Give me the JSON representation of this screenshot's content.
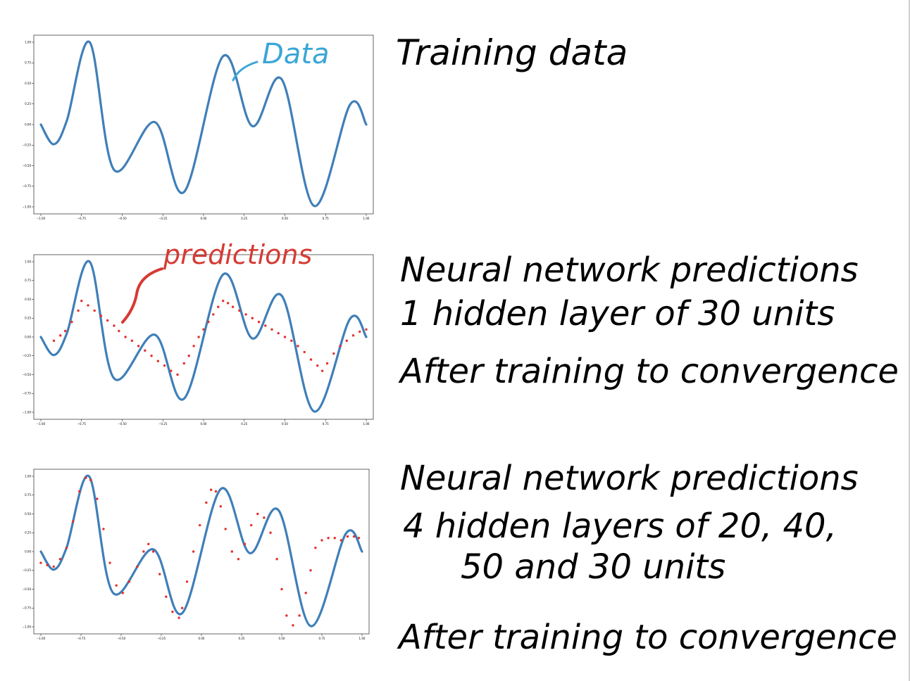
{
  "annotations": {
    "panel1_title": "Training data",
    "panel2_title_line1": "Neural network predictions",
    "panel2_title_line2": "1 hidden layer of 30 units",
    "panel2_title_line3": "After training to convergence",
    "panel3_title_line1": "Neural network predictions",
    "panel3_title_line2": "4 hidden layers of 20, 40,",
    "panel3_title_line3": "50 and 30 units",
    "panel3_title_line4": "After training to convergence",
    "data_callout": "Data",
    "predictions_callout": "predictions"
  },
  "colors": {
    "data_line": "#3f7fb8",
    "data_callout": "#3aa6d6",
    "predictions": "#e4302b",
    "predictions_callout": "#d63a33"
  },
  "chart_data": [
    {
      "type": "line",
      "title": "",
      "xlabel": "",
      "ylabel": "",
      "xlim": [
        -1.0,
        1.0
      ],
      "ylim": [
        -1.0,
        1.0
      ],
      "xticks": [
        -1.0,
        -0.75,
        -0.5,
        -0.25,
        0.0,
        0.25,
        0.5,
        0.75,
        1.0
      ],
      "xtick_labels": [
        "−1.00",
        "−0.75",
        "−0.50",
        "−0.25",
        "0.00",
        "0.25",
        "0.50",
        "0.75",
        "1.00"
      ],
      "yticks": [
        1.0,
        0.75,
        0.5,
        0.25,
        0.0,
        -0.25,
        -0.5,
        -0.75,
        -1.0
      ],
      "ytick_labels": [
        "1.00",
        "0.75",
        "0.50",
        "0.25",
        "0.00",
        "−0.25",
        "−0.50",
        "−0.75",
        "−1.00"
      ],
      "grid": false,
      "series": [
        {
          "name": "Data",
          "kind": "line",
          "x": [
            -1.0,
            -0.92,
            -0.84,
            -0.7,
            -0.55,
            -0.3,
            -0.12,
            0.12,
            0.3,
            0.48,
            0.68,
            0.9,
            1.0
          ],
          "y": [
            0.0,
            -0.24,
            0.05,
            1.0,
            -0.55,
            0.03,
            -0.82,
            0.83,
            -0.02,
            0.55,
            -0.99,
            0.24,
            0.0
          ]
        }
      ]
    },
    {
      "type": "line",
      "title": "",
      "xlabel": "",
      "ylabel": "",
      "xlim": [
        -1.0,
        1.0
      ],
      "ylim": [
        -1.0,
        1.0
      ],
      "xticks": [
        -1.0,
        -0.75,
        -0.5,
        -0.25,
        0.0,
        0.25,
        0.5,
        0.75,
        1.0
      ],
      "xtick_labels": [
        "−1.00",
        "−0.75",
        "−0.50",
        "−0.25",
        "0.00",
        "0.25",
        "0.50",
        "0.75",
        "1.00"
      ],
      "yticks": [
        1.0,
        0.75,
        0.5,
        0.25,
        0.0,
        -0.25,
        -0.5,
        -0.75,
        -1.0
      ],
      "ytick_labels": [
        "1.00",
        "0.75",
        "0.50",
        "0.25",
        "0.00",
        "−0.25",
        "−0.50",
        "−0.75",
        "−1.00"
      ],
      "grid": false,
      "series": [
        {
          "name": "Data",
          "kind": "line",
          "x": [
            -1.0,
            -0.92,
            -0.84,
            -0.7,
            -0.55,
            -0.3,
            -0.12,
            0.12,
            0.3,
            0.48,
            0.68,
            0.9,
            1.0
          ],
          "y": [
            0.0,
            -0.24,
            0.05,
            1.0,
            -0.55,
            0.03,
            -0.82,
            0.83,
            -0.02,
            0.55,
            -0.99,
            0.24,
            0.0
          ]
        },
        {
          "name": "predictions",
          "kind": "scatter",
          "x": [
            -0.92,
            -0.88,
            -0.85,
            -0.81,
            -0.77,
            -0.75,
            -0.71,
            -0.67,
            -0.63,
            -0.59,
            -0.55,
            -0.52,
            -0.48,
            -0.44,
            -0.4,
            -0.36,
            -0.32,
            -0.28,
            -0.24,
            -0.2,
            -0.16,
            -0.12,
            -0.09,
            -0.06,
            -0.03,
            0.0,
            0.03,
            0.06,
            0.09,
            0.12,
            0.15,
            0.18,
            0.22,
            0.26,
            0.3,
            0.34,
            0.38,
            0.42,
            0.46,
            0.5,
            0.54,
            0.58,
            0.62,
            0.66,
            0.7,
            0.73,
            0.76,
            0.8,
            0.84,
            0.88,
            0.92,
            0.96,
            1.0
          ],
          "y": [
            -0.05,
            0.02,
            0.08,
            0.2,
            0.35,
            0.48,
            0.42,
            0.35,
            0.28,
            0.22,
            0.15,
            0.08,
            0.0,
            -0.05,
            -0.12,
            -0.18,
            -0.25,
            -0.32,
            -0.38,
            -0.45,
            -0.5,
            -0.35,
            -0.25,
            -0.12,
            0.0,
            0.1,
            0.2,
            0.3,
            0.4,
            0.48,
            0.45,
            0.4,
            0.35,
            0.3,
            0.25,
            0.2,
            0.15,
            0.1,
            0.05,
            0.0,
            -0.05,
            -0.12,
            -0.2,
            -0.3,
            -0.38,
            -0.45,
            -0.35,
            -0.22,
            -0.12,
            -0.05,
            0.02,
            0.07,
            0.1
          ]
        }
      ]
    },
    {
      "type": "line",
      "title": "",
      "xlabel": "",
      "ylabel": "",
      "xlim": [
        -1.0,
        1.0
      ],
      "ylim": [
        -1.0,
        1.0
      ],
      "xticks": [
        -1.0,
        -0.75,
        -0.5,
        -0.25,
        0.0,
        0.25,
        0.5,
        0.75,
        1.0
      ],
      "xtick_labels": [
        "−1.00",
        "−0.75",
        "−0.50",
        "−0.25",
        "0.00",
        "0.25",
        "0.50",
        "0.75",
        "1.00"
      ],
      "yticks": [
        1.0,
        0.75,
        0.5,
        0.25,
        0.0,
        -0.25,
        -0.5,
        -0.75,
        -1.0
      ],
      "ytick_labels": [
        "1.00",
        "0.75",
        "0.50",
        "0.25",
        "0.00",
        "−0.25",
        "−0.50",
        "−0.75",
        "−1.00"
      ],
      "grid": false,
      "series": [
        {
          "name": "Data",
          "kind": "line",
          "x": [
            -1.0,
            -0.92,
            -0.84,
            -0.7,
            -0.55,
            -0.3,
            -0.12,
            0.12,
            0.3,
            0.48,
            0.68,
            0.9,
            1.0
          ],
          "y": [
            0.0,
            -0.24,
            0.05,
            1.0,
            -0.55,
            0.03,
            -0.82,
            0.83,
            -0.02,
            0.55,
            -0.99,
            0.24,
            0.0
          ]
        },
        {
          "name": "",
          "kind": "scatter",
          "x": [
            -1.0,
            -0.96,
            -0.92,
            -0.88,
            -0.84,
            -0.8,
            -0.76,
            -0.72,
            -0.69,
            -0.65,
            -0.61,
            -0.57,
            -0.53,
            -0.49,
            -0.45,
            -0.4,
            -0.36,
            -0.33,
            -0.3,
            -0.26,
            -0.22,
            -0.18,
            -0.14,
            -0.12,
            -0.09,
            -0.05,
            -0.01,
            0.03,
            0.06,
            0.09,
            0.12,
            0.15,
            0.19,
            0.23,
            0.27,
            0.31,
            0.35,
            0.39,
            0.43,
            0.47,
            0.5,
            0.53,
            0.57,
            0.61,
            0.65,
            0.68,
            0.71,
            0.75,
            0.79,
            0.83,
            0.87,
            0.91,
            0.95,
            0.98
          ],
          "y": [
            -0.15,
            -0.18,
            -0.2,
            -0.1,
            0.05,
            0.4,
            0.8,
            0.98,
            0.95,
            0.7,
            0.3,
            -0.15,
            -0.45,
            -0.55,
            -0.4,
            -0.2,
            0.0,
            0.1,
            0.0,
            -0.3,
            -0.6,
            -0.8,
            -0.88,
            -0.75,
            -0.4,
            0.0,
            0.35,
            0.65,
            0.82,
            0.8,
            0.6,
            0.3,
            0.0,
            -0.1,
            0.1,
            0.35,
            0.5,
            0.45,
            0.25,
            -0.1,
            -0.5,
            -0.85,
            -0.98,
            -0.85,
            -0.55,
            -0.25,
            0.05,
            0.15,
            0.18,
            0.18,
            0.15,
            0.2,
            0.2,
            0.18
          ]
        }
      ]
    }
  ]
}
